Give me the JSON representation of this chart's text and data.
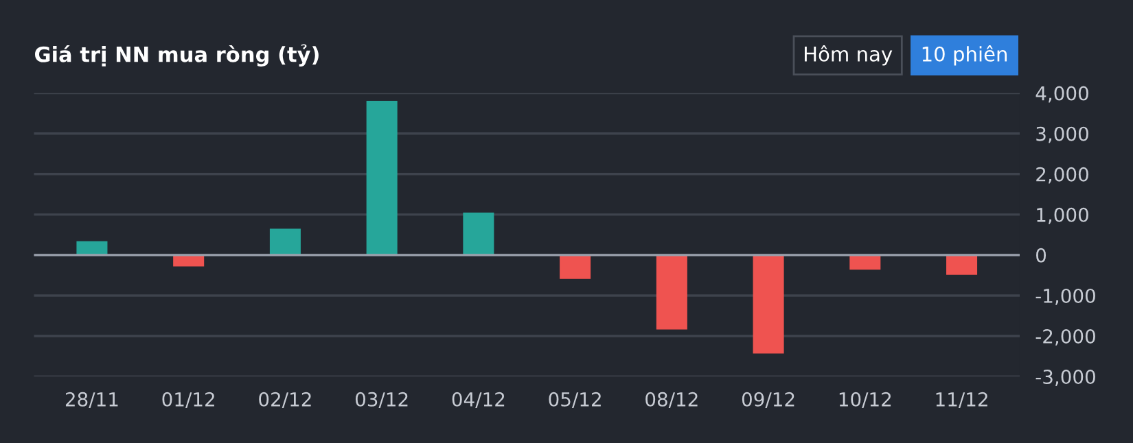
{
  "chart_data": {
    "type": "bar",
    "title": "Giá trị NN mua ròng (tỷ)",
    "categories": [
      "28/11",
      "01/12",
      "02/12",
      "03/12",
      "04/12",
      "05/12",
      "08/12",
      "09/12",
      "10/12",
      "11/12"
    ],
    "values": [
      340,
      -280,
      650,
      3810,
      1050,
      -590,
      -1840,
      -2430,
      -360,
      -490
    ],
    "colors": [
      "#26a69a",
      "#ef5350",
      "#26a69a",
      "#26a69a",
      "#26a69a",
      "#ef5350",
      "#ef5350",
      "#ef5350",
      "#ef5350",
      "#ef5350"
    ],
    "ylim": [
      -3000,
      4000
    ],
    "yticks": [
      {
        "value": -3000,
        "label": "-3,000"
      },
      {
        "value": -2000,
        "label": "-2,000"
      },
      {
        "value": -1000,
        "label": "-1,000"
      },
      0,
      {
        "value": 1000,
        "label": "1,000"
      },
      {
        "value": 2000,
        "label": "2,000"
      },
      {
        "value": 3000,
        "label": "3,000"
      },
      {
        "value": 4000,
        "label": "4,000"
      }
    ],
    "grid": "y",
    "annotations": [
      "Hôm nay",
      "10 phiên"
    ]
  }
}
